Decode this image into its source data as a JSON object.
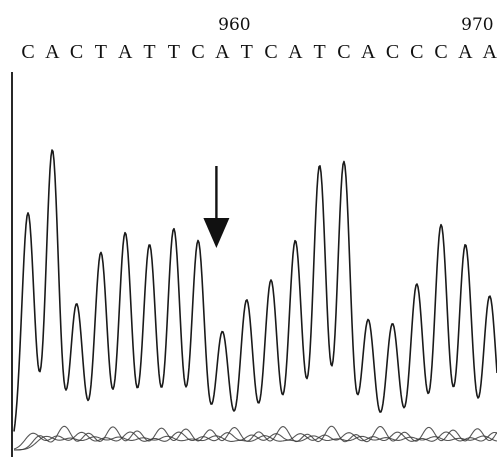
{
  "chart_data": {
    "type": "line",
    "sequence": [
      "C",
      "A",
      "C",
      "T",
      "A",
      "T",
      "T",
      "C",
      "A",
      "T",
      "C",
      "A",
      "T",
      "C",
      "A",
      "C",
      "C",
      "C",
      "A",
      "A"
    ],
    "position_ticks": [
      {
        "label": "960",
        "base_index": 8
      },
      {
        "label": "970",
        "base_index": 18
      }
    ],
    "marker": {
      "icon": "down-arrow-icon",
      "base_index": 8
    },
    "peak_heights": [
      0.6,
      0.76,
      0.37,
      0.5,
      0.55,
      0.52,
      0.56,
      0.53,
      0.3,
      0.38,
      0.43,
      0.53,
      0.72,
      0.73,
      0.33,
      0.32,
      0.42,
      0.57,
      0.52,
      0.39
    ],
    "ylim": [
      0,
      1
    ],
    "grid": false
  }
}
